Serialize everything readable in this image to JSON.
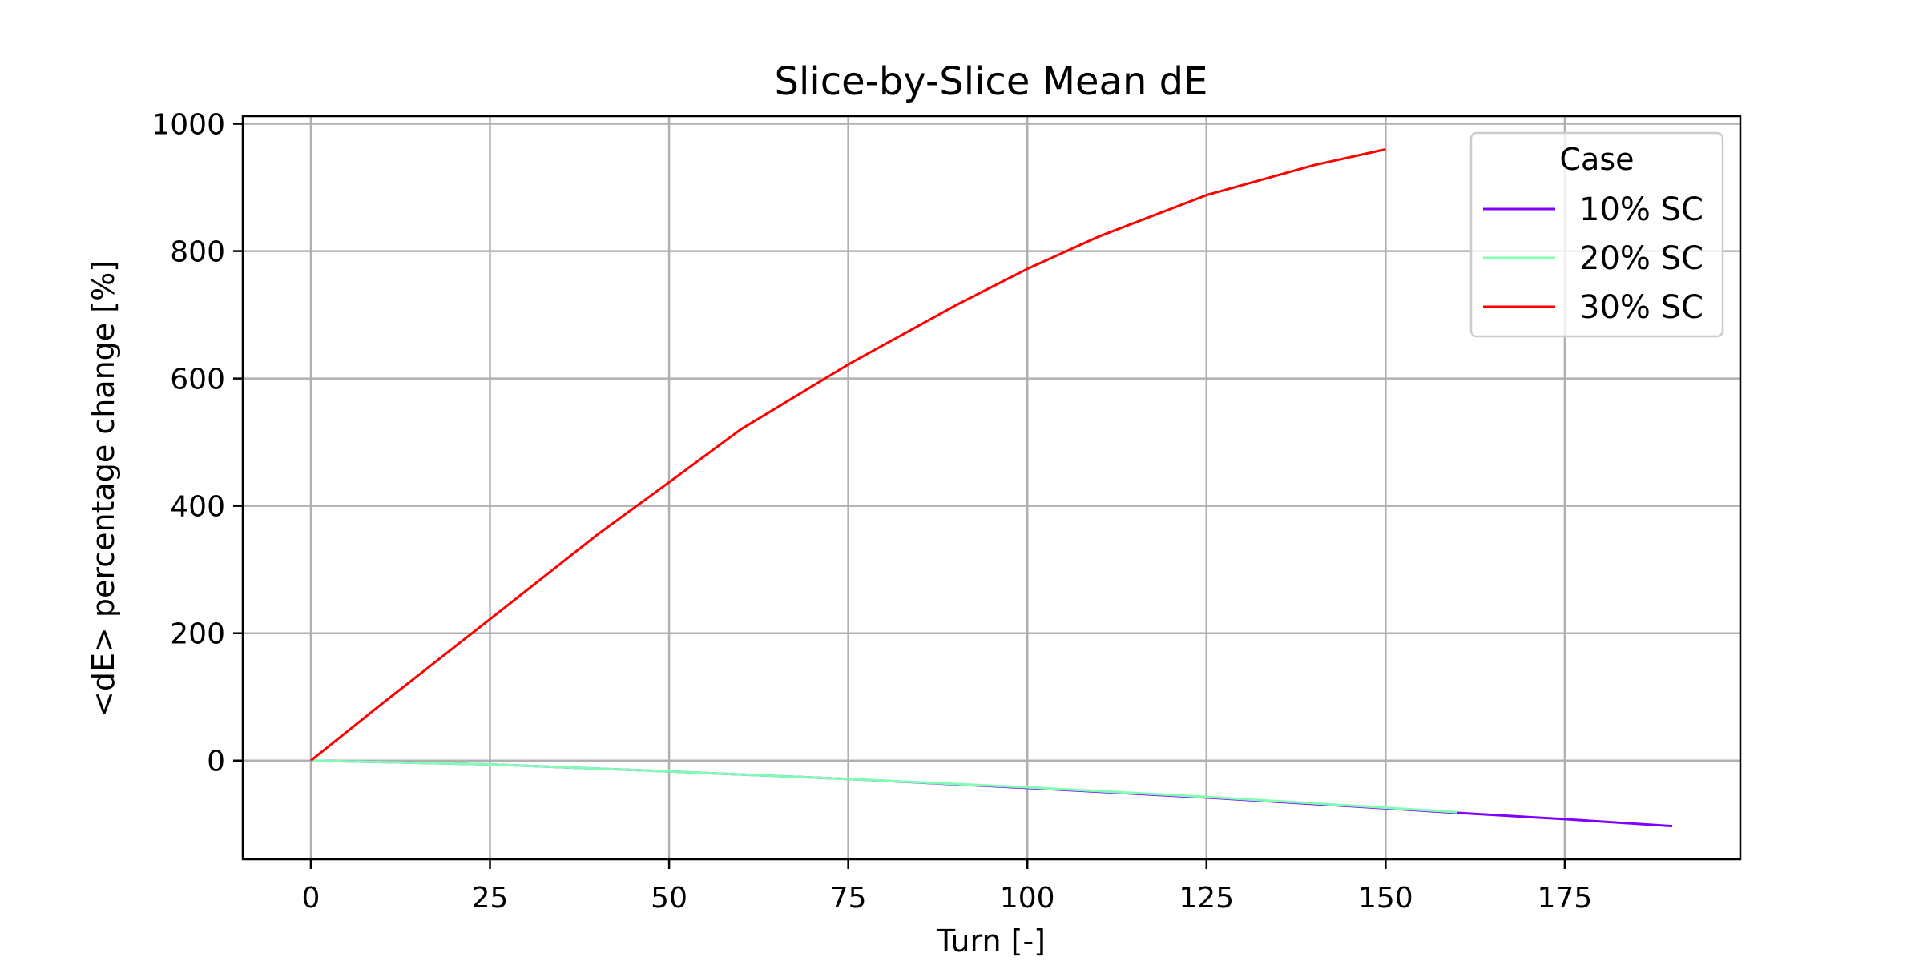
{
  "chart_data": {
    "type": "line",
    "title": "Slice-by-Slice Mean dE",
    "xlabel": "Turn [-]",
    "ylabel": "<dE> percentage change [%]",
    "xlim": [
      -9.5,
      199.5
    ],
    "ylim": [
      -155,
      1012
    ],
    "xticks": [
      0,
      25,
      50,
      75,
      100,
      125,
      150,
      175
    ],
    "yticks": [
      0,
      200,
      400,
      600,
      800,
      1000
    ],
    "grid": true,
    "legend": {
      "title": "Case",
      "placement": "top-right"
    },
    "series": [
      {
        "name": "10% SC",
        "color": "#7f00ff",
        "x": [
          0,
          25,
          50,
          75,
          100,
          125,
          150,
          160,
          175,
          190
        ],
        "y": [
          0,
          -6,
          -17,
          -29,
          -43,
          -58,
          -75,
          -82,
          -92,
          -103
        ]
      },
      {
        "name": "20% SC",
        "color": "#80ffb4",
        "x": [
          0,
          25,
          50,
          75,
          100,
          125,
          150,
          160
        ],
        "y": [
          0,
          -6,
          -17,
          -29,
          -42,
          -57,
          -74,
          -81
        ]
      },
      {
        "name": "30% SC",
        "color": "#ff0000",
        "x": [
          0,
          10,
          25,
          40,
          50,
          60,
          75,
          90,
          100,
          110,
          125,
          140,
          150
        ],
        "y": [
          0,
          90,
          222,
          355,
          437,
          520,
          622,
          715,
          772,
          823,
          888,
          935,
          960
        ]
      }
    ]
  }
}
